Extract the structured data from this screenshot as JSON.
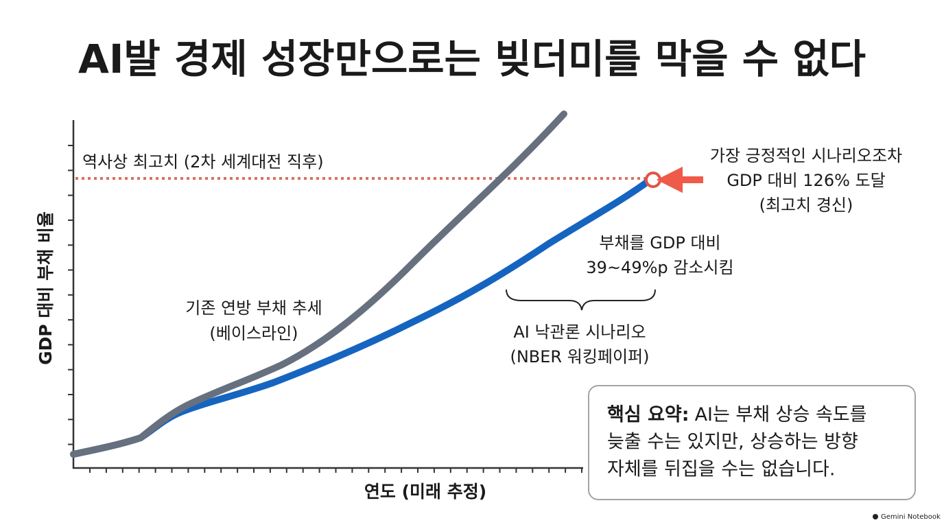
{
  "title": "AI발 경제 성장만으로는 빚더미를 막을 수 없다",
  "y_axis_label": "GDP 대비 부채 비율",
  "x_axis_label": "연도 (미래 추정)",
  "annotations": {
    "historical_high": "역사상 최고치 (2차 세계대전 직후)",
    "peak_callout": [
      "가장 긍정적인 시나리오조차",
      "GDP 대비 126% 도달",
      "(최고치 경신)"
    ],
    "reduction": [
      "부채를 GDP 대비",
      "39~49%p 감소시킴"
    ],
    "ai_scenario": [
      "AI 낙관론 시나리오",
      "(NBER 워킹페이퍼)"
    ],
    "baseline": [
      "기존 연방 부채 추세",
      "(베이스라인)"
    ]
  },
  "summary": {
    "label": "핵심 요약:",
    "lines": [
      "AI는 부채 상승 속도를",
      "늦출 수는 있지만, 상승하는 방향",
      "자체를 뒤집을 수는 없습니다."
    ]
  },
  "watermark": "Gemini Notebook"
}
